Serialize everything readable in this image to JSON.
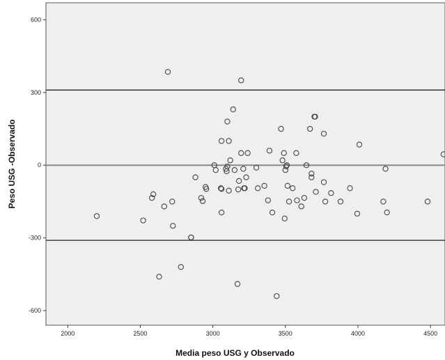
{
  "chart_data": {
    "type": "scatter",
    "title": "",
    "xlabel": "Media peso USG y Observado",
    "ylabel": "Peso USG -Observado",
    "xlim": [
      1850,
      4600
    ],
    "ylim": [
      -660,
      670
    ],
    "xticks": [
      2000,
      2500,
      3000,
      3500,
      4000,
      4500
    ],
    "yticks": [
      -600,
      -300,
      0,
      300,
      600
    ],
    "xtick_labels": [
      "2000",
      "2500",
      "3000",
      "3500",
      "4000",
      "4500"
    ],
    "ytick_labels": [
      "-600",
      "-300",
      "0",
      "300",
      "600"
    ],
    "grid": false,
    "background": "#efefef",
    "marker": "open-circle",
    "reference_lines": [
      {
        "name": "mean difference",
        "y": 0,
        "color": "#888888"
      },
      {
        "name": "upper limit of agreement",
        "y": 310,
        "color": "#222222"
      },
      {
        "name": "lower limit of agreement",
        "y": -310,
        "color": "#222222"
      }
    ],
    "points": [
      {
        "x": 2200,
        "y": -210
      },
      {
        "x": 2520,
        "y": -228
      },
      {
        "x": 2580,
        "y": -135
      },
      {
        "x": 2590,
        "y": -120
      },
      {
        "x": 2630,
        "y": -460
      },
      {
        "x": 2665,
        "y": -170
      },
      {
        "x": 2690,
        "y": 385
      },
      {
        "x": 2720,
        "y": -150
      },
      {
        "x": 2725,
        "y": -250
      },
      {
        "x": 2780,
        "y": -420
      },
      {
        "x": 2850,
        "y": -298
      },
      {
        "x": 2850,
        "y": -298
      },
      {
        "x": 2880,
        "y": -50
      },
      {
        "x": 2920,
        "y": -135
      },
      {
        "x": 2930,
        "y": -148
      },
      {
        "x": 2950,
        "y": -90
      },
      {
        "x": 2955,
        "y": -98
      },
      {
        "x": 3010,
        "y": 0
      },
      {
        "x": 3020,
        "y": -20
      },
      {
        "x": 3055,
        "y": -95
      },
      {
        "x": 3060,
        "y": -98
      },
      {
        "x": 3060,
        "y": -195
      },
      {
        "x": 3060,
        "y": 100
      },
      {
        "x": 3090,
        "y": -15
      },
      {
        "x": 3095,
        "y": -25
      },
      {
        "x": 3100,
        "y": 180
      },
      {
        "x": 3100,
        "y": -5
      },
      {
        "x": 3110,
        "y": 100
      },
      {
        "x": 3110,
        "y": -105
      },
      {
        "x": 3120,
        "y": 20
      },
      {
        "x": 3140,
        "y": 230
      },
      {
        "x": 3150,
        "y": -20
      },
      {
        "x": 3170,
        "y": -490
      },
      {
        "x": 3175,
        "y": -100
      },
      {
        "x": 3180,
        "y": -65
      },
      {
        "x": 3195,
        "y": 350
      },
      {
        "x": 3195,
        "y": 50
      },
      {
        "x": 3210,
        "y": -15
      },
      {
        "x": 3215,
        "y": -95
      },
      {
        "x": 3220,
        "y": -95
      },
      {
        "x": 3230,
        "y": -50
      },
      {
        "x": 3240,
        "y": 50
      },
      {
        "x": 3300,
        "y": -10
      },
      {
        "x": 3310,
        "y": -95
      },
      {
        "x": 3355,
        "y": -85
      },
      {
        "x": 3380,
        "y": -145
      },
      {
        "x": 3390,
        "y": 60
      },
      {
        "x": 3410,
        "y": -195
      },
      {
        "x": 3440,
        "y": -540
      },
      {
        "x": 3470,
        "y": 150
      },
      {
        "x": 3480,
        "y": 20
      },
      {
        "x": 3490,
        "y": 50
      },
      {
        "x": 3495,
        "y": -220
      },
      {
        "x": 3500,
        "y": -20
      },
      {
        "x": 3505,
        "y": -5
      },
      {
        "x": 3510,
        "y": 0
      },
      {
        "x": 3515,
        "y": -85
      },
      {
        "x": 3525,
        "y": -150
      },
      {
        "x": 3550,
        "y": -95
      },
      {
        "x": 3575,
        "y": 50
      },
      {
        "x": 3580,
        "y": -145
      },
      {
        "x": 3610,
        "y": -170
      },
      {
        "x": 3630,
        "y": -135
      },
      {
        "x": 3645,
        "y": 0
      },
      {
        "x": 3670,
        "y": 150
      },
      {
        "x": 3680,
        "y": -50
      },
      {
        "x": 3680,
        "y": -35
      },
      {
        "x": 3700,
        "y": 200
      },
      {
        "x": 3705,
        "y": 200
      },
      {
        "x": 3710,
        "y": -110
      },
      {
        "x": 3765,
        "y": 130
      },
      {
        "x": 3765,
        "y": -70
      },
      {
        "x": 3775,
        "y": -150
      },
      {
        "x": 3815,
        "y": -115
      },
      {
        "x": 3880,
        "y": -150
      },
      {
        "x": 3945,
        "y": -95
      },
      {
        "x": 3995,
        "y": -200
      },
      {
        "x": 4010,
        "y": 85
      },
      {
        "x": 4175,
        "y": -150
      },
      {
        "x": 4190,
        "y": -15
      },
      {
        "x": 4200,
        "y": -195
      },
      {
        "x": 4480,
        "y": -150
      },
      {
        "x": 4590,
        "y": 45
      }
    ]
  }
}
